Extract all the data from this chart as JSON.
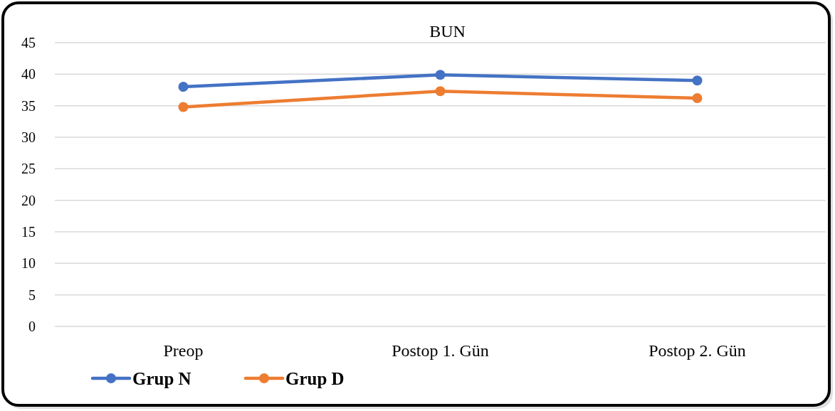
{
  "chart_data": {
    "type": "line",
    "title": "BUN",
    "categories": [
      "Preop",
      "Postop 1. Gün",
      "Postop 2. Gün"
    ],
    "series": [
      {
        "name": "Grup N",
        "color": "#4472c4",
        "values": [
          38.0,
          39.9,
          39.0
        ]
      },
      {
        "name": "Grup D",
        "color": "#ed7d31",
        "values": [
          34.8,
          37.3,
          36.2
        ]
      }
    ],
    "ylim": [
      0,
      45
    ],
    "yticks": [
      0,
      5,
      10,
      15,
      20,
      25,
      30,
      35,
      40,
      45
    ],
    "grid": "y",
    "legend": "bottom left",
    "marker": "circle",
    "line_style": "solid"
  }
}
